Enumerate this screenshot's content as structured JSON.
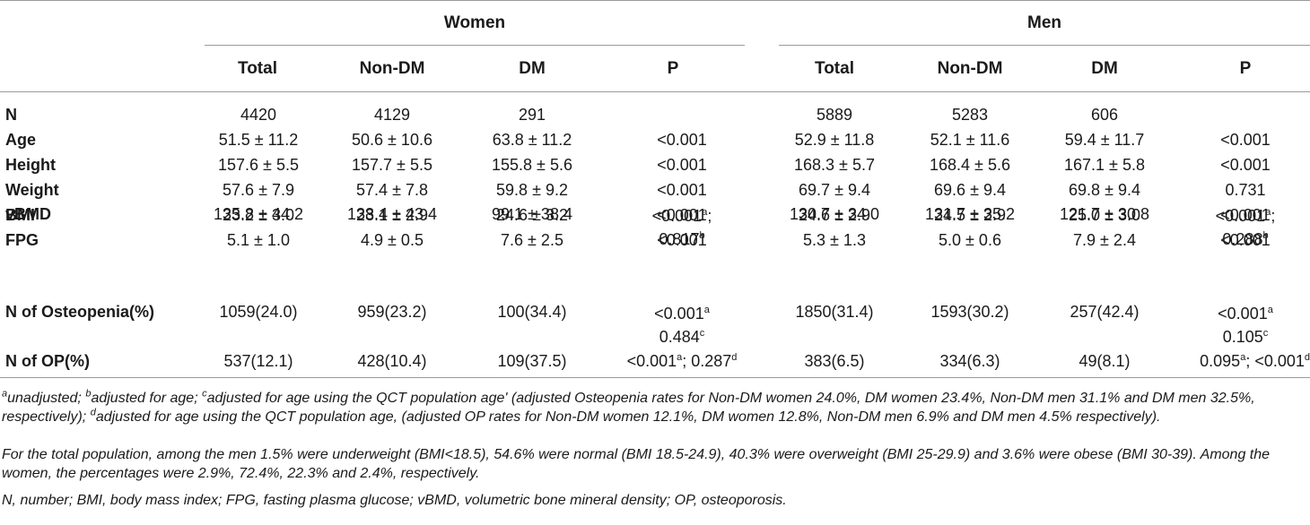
{
  "groups": {
    "women": "Women",
    "men": "Men"
  },
  "columns": [
    "Total",
    "Non-DM",
    "DM",
    "P",
    "Total",
    "Non-DM",
    "DM",
    "P"
  ],
  "rows": [
    {
      "label": "N",
      "cells": [
        "4420",
        "4129",
        "291",
        "",
        "5889",
        "5283",
        "606",
        ""
      ]
    },
    {
      "label": "Age",
      "cells": [
        "51.5 ± 11.2",
        "50.6 ± 10.6",
        "63.8 ± 11.2",
        "<0.001",
        "52.9 ± 11.8",
        "52.1 ± 11.6",
        "59.4 ± 11.7",
        "<0.001"
      ]
    },
    {
      "label": "Height",
      "cells": [
        "157.6 ± 5.5",
        "157.7 ± 5.5",
        "155.8 ± 5.6",
        "<0.001",
        "168.3 ± 5.7",
        "168.4 ± 5.6",
        "167.1 ± 5.8",
        "<0.001"
      ]
    },
    {
      "label": "Weight",
      "cells": [
        "57.6 ± 7.9",
        "57.4 ± 7.8",
        "59.8 ± 9.2",
        "<0.001",
        "69.7 ± 9.4",
        "69.6 ± 9.4",
        "69.8 ± 9.4",
        "0.731"
      ]
    },
    {
      "label": "BMI",
      "cells": [
        "23.2 ± 3.0",
        "23.1 ± 2.9",
        "24.6 ± 3.2",
        "<0.001",
        "24.6 ± 2.9",
        "24.5 ± 2.9",
        "25.0 ± 3.0",
        "<0.001"
      ]
    },
    {
      "label": "FPG",
      "cells": [
        "5.1 ± 1.0",
        "4.9 ± 0.5",
        "7.6 ± 2.5",
        "<0.001",
        "5.3 ± 1.3",
        "5.0 ± 0.6",
        "7.9 ± 2.4",
        "<0.001"
      ]
    }
  ],
  "vbmd": {
    "label": "vBMD",
    "cells": [
      "135.8 ± 44.2",
      "138.4 ± 43.4",
      "99.1 ± 38.4",
      "130.7 ± 34.0",
      "131.7 ± 35.2",
      "121.7 ± 30.8"
    ],
    "p_women_1": "<0.001",
    "sup_a": "a",
    "p_women_sep": ";",
    "p_women_2": "0.817",
    "sup_b": "b",
    "p_men_1": "<0.001",
    "p_men_2": "0.288"
  },
  "osteopenia": {
    "label": "N of Osteopenia(%)",
    "cells": [
      "1059(24.0)",
      "959(23.2)",
      "100(34.4)",
      "1850(31.4)",
      "1593(30.2)",
      "257(42.4)"
    ],
    "p_women_1": "<0.001",
    "p_women_2": "0.484",
    "p_men_1": "<0.001",
    "p_men_2": "0.105",
    "sup_a": "a",
    "sup_c": "c"
  },
  "op": {
    "label": "N of OP(%)",
    "cells": [
      "537(12.1)",
      "428(10.4)",
      "109(37.5)",
      "383(6.5)",
      "334(6.3)",
      "49(8.1)"
    ],
    "p_women_1": "<0.001",
    "p_women_mid": "; 0.287",
    "p_men_1": "0.095",
    "p_men_mid": "; <0.001",
    "sup_a": "a",
    "sup_d": "d"
  },
  "footnotes": {
    "f1_sup_a": "a",
    "f1_a": "unadjusted; ",
    "f1_sup_b": "b",
    "f1_b": "adjusted for age; ",
    "f1_sup_c": "c",
    "f1_c": "adjusted for age using the QCT population age' (adjusted Osteopenia rates for Non-DM women 24.0%, DM women 23.4%, Non-DM men 31.1% and DM men 32.5%, respectively); ",
    "f1_sup_d": "d",
    "f1_d": "adjusted for age using the QCT population age, (adjusted OP rates for Non-DM women 12.1%, DM women 12.8%, Non-DM men 6.9% and DM men 4.5% respectively).",
    "f2": "For the total population, among the men 1.5% were underweight (BMI<18.5), 54.6% were normal (BMI 18.5-24.9), 40.3% were overweight (BMI 25-29.9) and 3.6% were obese (BMI 30-39). Among the women, the percentages were 2.9%, 72.4%, 22.3% and 2.4%, respectively.",
    "f3": "N, number; BMI, body mass index; FPG, fasting plasma glucose; vBMD, volumetric bone mineral density; OP, osteoporosis."
  }
}
